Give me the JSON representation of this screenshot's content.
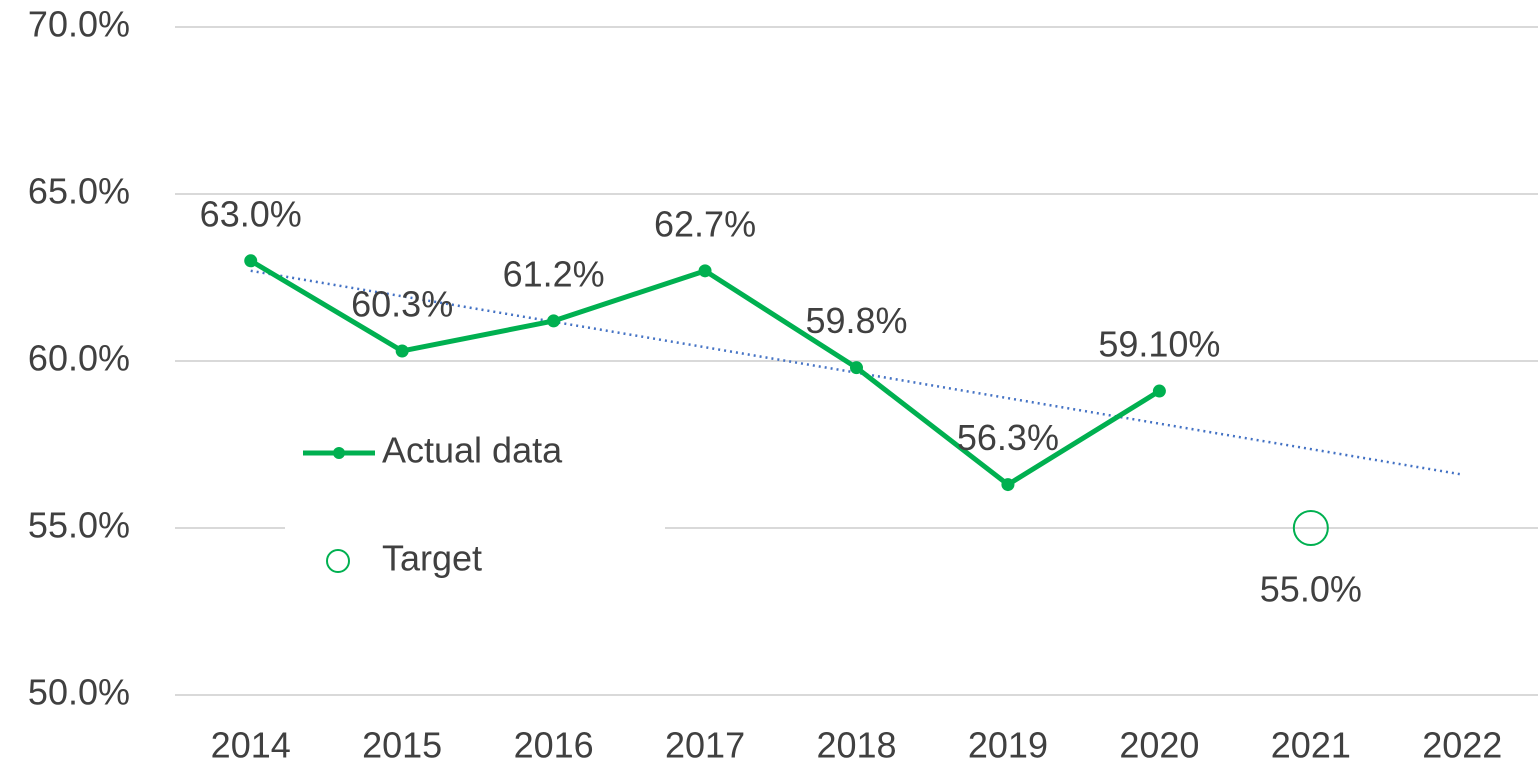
{
  "chart_data": {
    "type": "line",
    "categories": [
      "2014",
      "2015",
      "2016",
      "2017",
      "2018",
      "2019",
      "2020",
      "2021",
      "2022"
    ],
    "series": [
      {
        "name": "Actual data",
        "color": "#00b050",
        "marker": "filled",
        "values": [
          63.0,
          60.3,
          61.2,
          62.7,
          59.8,
          56.3,
          59.1,
          null,
          null
        ],
        "value_labels": [
          "63.0%",
          "60.3%",
          "61.2%",
          "62.7%",
          "59.8%",
          "56.3%",
          "59.10%",
          null,
          null
        ],
        "label_position": "above"
      },
      {
        "name": "Target",
        "color": "#00b050",
        "marker": "open",
        "values": [
          null,
          null,
          null,
          null,
          null,
          null,
          null,
          55.0,
          null
        ],
        "value_labels": [
          null,
          null,
          null,
          null,
          null,
          null,
          null,
          "55.0%",
          null
        ],
        "label_position": "below"
      }
    ],
    "trendline": {
      "color": "#4472c4",
      "style": "dotted",
      "values": [
        62.7,
        56.6
      ]
    },
    "ylim": [
      50,
      70
    ],
    "yticks": [
      {
        "value": 50,
        "label": "50.0%"
      },
      {
        "value": 55,
        "label": "55.0%"
      },
      {
        "value": 60,
        "label": "60.0%"
      },
      {
        "value": 65,
        "label": "65.0%"
      },
      {
        "value": 70,
        "label": "70.0%"
      }
    ],
    "grid": true,
    "legend": "left"
  }
}
